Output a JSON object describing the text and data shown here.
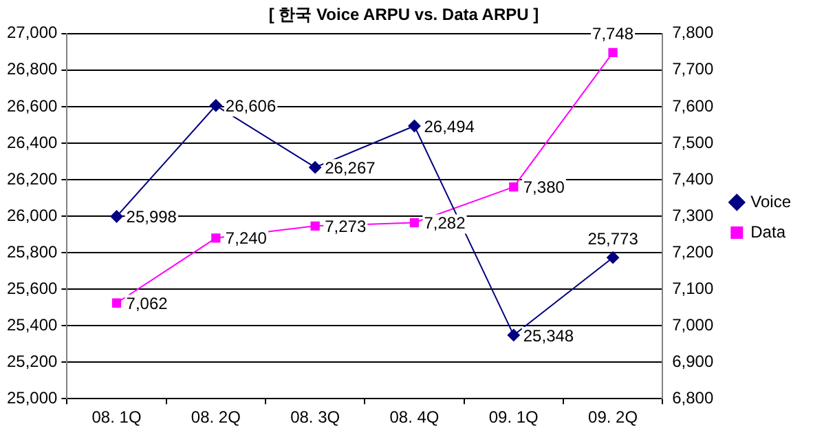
{
  "chart_data": {
    "type": "line",
    "title": "[ 한국 Voice ARPU vs. Data ARPU ]",
    "categories": [
      "08. 1Q",
      "08. 2Q",
      "08. 3Q",
      "08. 4Q",
      "09. 1Q",
      "09. 2Q"
    ],
    "series": [
      {
        "name": "Voice",
        "color": "#000080",
        "marker": "diamond",
        "values": [
          25998,
          26606,
          26267,
          26494,
          25348,
          25773
        ],
        "value_labels": [
          "25,998",
          "26,606",
          "26,267",
          "26,494",
          "25,348",
          "25,773"
        ]
      },
      {
        "name": "Data",
        "color": "#ff00ff",
        "marker": "square",
        "axis": "y2",
        "values": [
          7062,
          7240,
          7273,
          7282,
          7380,
          7748
        ],
        "value_labels": [
          "7,062",
          "7,240",
          "7,273",
          "7,282",
          "7,380",
          "7,748"
        ]
      }
    ],
    "ylim": [
      25000,
      27000
    ],
    "yticks": [
      {
        "value": 25000,
        "label": "25,000"
      },
      {
        "value": 25200,
        "label": "25,200"
      },
      {
        "value": 25400,
        "label": "25,400"
      },
      {
        "value": 25600,
        "label": "25,600"
      },
      {
        "value": 25800,
        "label": "25,800"
      },
      {
        "value": 26000,
        "label": "26,000"
      },
      {
        "value": 26200,
        "label": "26,200"
      },
      {
        "value": 26400,
        "label": "26,400"
      },
      {
        "value": 26600,
        "label": "26,600"
      },
      {
        "value": 26800,
        "label": "26,800"
      },
      {
        "value": 27000,
        "label": "27,000"
      }
    ],
    "y2lim": [
      6800,
      7800
    ],
    "y2ticks": [
      {
        "value": 6800,
        "label": "6,800"
      },
      {
        "value": 6900,
        "label": "6,900"
      },
      {
        "value": 7000,
        "label": "7,000"
      },
      {
        "value": 7100,
        "label": "7,100"
      },
      {
        "value": 7200,
        "label": "7,200"
      },
      {
        "value": 7300,
        "label": "7,300"
      },
      {
        "value": 7400,
        "label": "7,400"
      },
      {
        "value": 7500,
        "label": "7,500"
      },
      {
        "value": 7600,
        "label": "7,600"
      },
      {
        "value": 7700,
        "label": "7,700"
      },
      {
        "value": 7800,
        "label": "7,800"
      }
    ],
    "grid": "y",
    "legend": "right",
    "line_style": "solid"
  }
}
